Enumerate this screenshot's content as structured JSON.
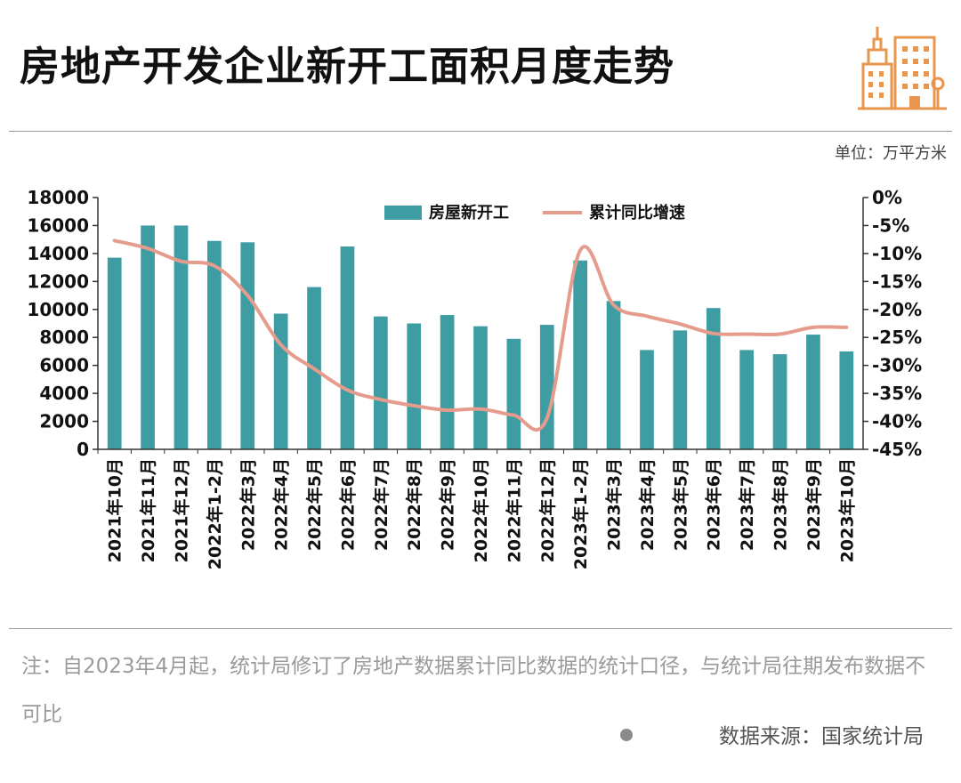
{
  "header": {
    "title": "房地产开发企业新开工面积月度走势",
    "unit": "单位：万平方米"
  },
  "footer": {
    "note": "注：自2023年4月起，统计局修订了房地产数据累计同比数据的统计口径，与统计局往期发布数据不可比",
    "source": "数据来源：国家统计局"
  },
  "colors": {
    "bar": "#3e9ca3",
    "line": "#e59c8c",
    "accent": "#e8954e"
  },
  "icons": {
    "logo": "city-buildings-icon"
  },
  "chart_data": {
    "type": "bar",
    "categories": [
      "2021年10月",
      "2021年11月",
      "2021年12月",
      "2022年1-2月",
      "2022年3月",
      "2022年4月",
      "2022年5月",
      "2022年6月",
      "2022年7月",
      "2022年8月",
      "2022年9月",
      "2022年10月",
      "2022年11月",
      "2022年12月",
      "2023年1-2月",
      "2023年3月",
      "2023年4月",
      "2023年5月",
      "2023年6月",
      "2023年7月",
      "2023年8月",
      "2023年9月",
      "2023年10月"
    ],
    "series": [
      {
        "name": "房屋新开工",
        "type": "bar",
        "axis": "left",
        "values": [
          13700,
          16000,
          16000,
          14900,
          14800,
          9700,
          11600,
          14500,
          9500,
          9000,
          9600,
          8800,
          7900,
          8900,
          13500,
          10600,
          7100,
          8500,
          10100,
          7100,
          6800,
          8200,
          7000
        ]
      },
      {
        "name": "累计同比增速",
        "type": "line",
        "axis": "right",
        "values": [
          -7.7,
          -9.1,
          -11.4,
          -12.2,
          -17.5,
          -26.3,
          -30.6,
          -34.4,
          -36.1,
          -37.2,
          -38.0,
          -37.8,
          -38.9,
          -39.4,
          -9.4,
          -19.2,
          -21.2,
          -22.6,
          -24.3,
          -24.4,
          -24.4,
          -23.2,
          -23.2
        ]
      }
    ],
    "y_left": {
      "ylim": [
        0,
        18000
      ],
      "ticks": [
        "0",
        "2000",
        "4000",
        "6000",
        "8000",
        "10000",
        "12000",
        "14000",
        "16000",
        "18000"
      ]
    },
    "y_right": {
      "ylim": [
        -45,
        0
      ],
      "ticks": [
        "0%",
        "-5%",
        "-10%",
        "-15%",
        "-20%",
        "-25%",
        "-30%",
        "-35%",
        "-40%",
        "-45%"
      ]
    },
    "legend": "top-center",
    "grid": false
  }
}
